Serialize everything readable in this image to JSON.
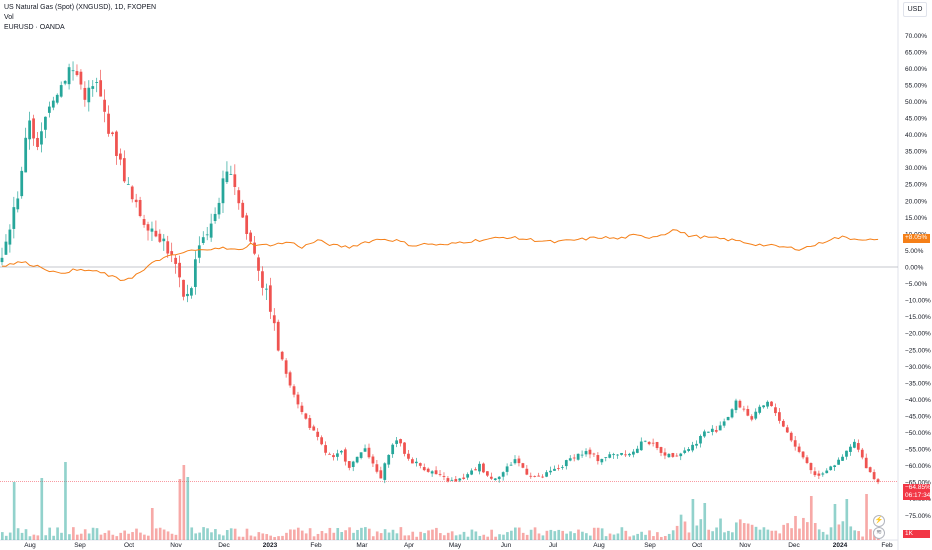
{
  "legend": {
    "series_title": "US Natural Gas (Spot) (XNGUSD), 1D, FXOPEN",
    "volume_label": "Vol",
    "compare_label": "EURUSD · OANDA"
  },
  "currency": "USD",
  "badges": {
    "eurusd_value": "+8.05%",
    "ng_value": "−64.85%",
    "ng_countdown": "06:17:34",
    "vol_value": "1K"
  },
  "icons": {
    "alert": "lightning-icon",
    "layers": "layers-icon"
  },
  "colors": {
    "up": "#26a69a",
    "down": "#ef5350",
    "compare": "#f57f17",
    "zero_line": "#b2b5be",
    "price_line": "#f23645"
  },
  "chart_data": {
    "type": "candlestick",
    "y_scale": "percent",
    "ylim": [
      -80,
      72
    ],
    "y_ticks": [
      "70.00%",
      "65.00%",
      "60.00%",
      "55.00%",
      "50.00%",
      "45.00%",
      "40.00%",
      "35.00%",
      "30.00%",
      "25.00%",
      "20.00%",
      "15.00%",
      "10.00%",
      "5.00%",
      "0.00%",
      "−5.00%",
      "−10.00%",
      "−15.00%",
      "−20.00%",
      "−25.00%",
      "−30.00%",
      "−35.00%",
      "−40.00%",
      "−45.00%",
      "−50.00%",
      "−55.00%",
      "−60.00%",
      "−65.00%",
      "−70.00%",
      "−75.00%"
    ],
    "x_ticks": [
      "Aug",
      "Sep",
      "Oct",
      "Nov",
      "Dec",
      "2023",
      "Feb",
      "Mar",
      "Apr",
      "May",
      "Jun",
      "Jul",
      "Aug",
      "Sep",
      "Oct",
      "Nov",
      "Dec",
      "2024",
      "Feb"
    ],
    "series": [
      {
        "name": "US Natural Gas (Spot) (XNGUSD)",
        "anchors": [
          [
            0,
            2
          ],
          [
            4,
            22
          ],
          [
            7,
            45
          ],
          [
            9,
            35
          ],
          [
            12,
            50
          ],
          [
            15,
            55
          ],
          [
            17,
            60
          ],
          [
            19,
            58
          ],
          [
            21,
            52
          ],
          [
            24,
            55
          ],
          [
            27,
            42
          ],
          [
            29,
            35
          ],
          [
            33,
            20
          ],
          [
            36,
            14
          ],
          [
            38,
            12
          ],
          [
            41,
            8
          ],
          [
            44,
            0
          ],
          [
            46,
            -10
          ],
          [
            48,
            -5
          ],
          [
            50,
            8
          ],
          [
            53,
            12
          ],
          [
            56,
            25
          ],
          [
            58,
            30
          ],
          [
            60,
            20
          ],
          [
            62,
            10
          ],
          [
            64,
            5
          ],
          [
            66,
            -5
          ],
          [
            68,
            -12
          ],
          [
            70,
            -25
          ],
          [
            72,
            -32
          ],
          [
            74,
            -38
          ],
          [
            76,
            -44
          ],
          [
            78,
            -48
          ],
          [
            80,
            -52
          ],
          [
            82,
            -56
          ],
          [
            84,
            -58
          ],
          [
            86,
            -56
          ],
          [
            88,
            -60
          ],
          [
            90,
            -58
          ],
          [
            92,
            -54
          ],
          [
            94,
            -60
          ],
          [
            96,
            -64
          ],
          [
            98,
            -56
          ],
          [
            100,
            -52
          ],
          [
            103,
            -58
          ],
          [
            106,
            -60
          ],
          [
            109,
            -62
          ],
          [
            112,
            -64
          ],
          [
            115,
            -65
          ],
          [
            118,
            -63
          ],
          [
            121,
            -60
          ],
          [
            124,
            -64
          ],
          [
            127,
            -62
          ],
          [
            130,
            -58
          ],
          [
            133,
            -62
          ],
          [
            136,
            -64
          ],
          [
            139,
            -62
          ],
          [
            142,
            -60
          ],
          [
            145,
            -57
          ],
          [
            148,
            -56
          ],
          [
            151,
            -58
          ],
          [
            154,
            -57
          ],
          [
            157,
            -56
          ],
          [
            160,
            -56
          ],
          [
            163,
            -52
          ],
          [
            166,
            -55
          ],
          [
            169,
            -57
          ],
          [
            172,
            -56
          ],
          [
            175,
            -54
          ],
          [
            178,
            -50
          ],
          [
            181,
            -49
          ],
          [
            184,
            -45
          ],
          [
            186,
            -41
          ],
          [
            188,
            -43
          ],
          [
            190,
            -46
          ],
          [
            192,
            -43
          ],
          [
            194,
            -41
          ],
          [
            196,
            -44
          ],
          [
            198,
            -48
          ],
          [
            200,
            -52
          ],
          [
            202,
            -56
          ],
          [
            204,
            -59
          ],
          [
            206,
            -63
          ],
          [
            208,
            -62
          ],
          [
            210,
            -60
          ],
          [
            212,
            -59
          ],
          [
            214,
            -56
          ],
          [
            216,
            -53
          ],
          [
            218,
            -58
          ],
          [
            220,
            -62
          ],
          [
            222,
            -65
          ]
        ],
        "bar_count": 223,
        "last_change_percent": -64.85,
        "bar_dates": {
          "first": "Jul 2022",
          "last": "Jan 2024"
        }
      },
      {
        "name": "EURUSD · OANDA",
        "type": "line",
        "anchors": [
          [
            0,
            0.5
          ],
          [
            5,
            1.5
          ],
          [
            10,
            0
          ],
          [
            14,
            -2
          ],
          [
            18,
            -1
          ],
          [
            22,
            -1
          ],
          [
            26,
            -2
          ],
          [
            30,
            -4
          ],
          [
            33,
            -3
          ],
          [
            36,
            -1
          ],
          [
            39,
            2
          ],
          [
            42,
            3
          ],
          [
            45,
            4
          ],
          [
            48,
            5
          ],
          [
            51,
            5
          ],
          [
            54,
            6
          ],
          [
            57,
            5.5
          ],
          [
            60,
            5
          ],
          [
            63,
            7
          ],
          [
            66,
            6.5
          ],
          [
            70,
            7
          ],
          [
            73,
            7.5
          ],
          [
            76,
            6
          ],
          [
            80,
            8
          ],
          [
            84,
            6.5
          ],
          [
            88,
            6
          ],
          [
            92,
            7.5
          ],
          [
            96,
            8.5
          ],
          [
            100,
            8
          ],
          [
            104,
            6.5
          ],
          [
            108,
            7
          ],
          [
            112,
            6.5
          ],
          [
            116,
            7.5
          ],
          [
            120,
            8
          ],
          [
            124,
            8.5
          ],
          [
            128,
            9
          ],
          [
            132,
            8.5
          ],
          [
            136,
            8
          ],
          [
            140,
            7.5
          ],
          [
            144,
            8
          ],
          [
            148,
            8.5
          ],
          [
            152,
            9
          ],
          [
            156,
            8.5
          ],
          [
            160,
            9.5
          ],
          [
            164,
            9
          ],
          [
            168,
            10
          ],
          [
            170,
            11.5
          ],
          [
            172,
            10.5
          ],
          [
            174,
            9.5
          ],
          [
            178,
            9
          ],
          [
            182,
            8.5
          ],
          [
            186,
            8
          ],
          [
            190,
            7
          ],
          [
            194,
            6.5
          ],
          [
            198,
            6
          ],
          [
            202,
            5.5
          ],
          [
            204,
            6
          ],
          [
            207,
            7
          ],
          [
            210,
            8.5
          ],
          [
            213,
            9
          ],
          [
            216,
            8.5
          ],
          [
            218,
            8.5
          ],
          [
            220,
            8.2
          ],
          [
            222,
            8.05
          ]
        ],
        "last_change_percent": 8.05
      }
    ],
    "volume": {
      "name": "Vol",
      "spikes": [
        [
          3,
          58
        ],
        [
          10,
          62
        ],
        [
          16,
          78
        ],
        [
          38,
          32
        ],
        [
          45,
          61
        ],
        [
          46,
          75
        ],
        [
          47,
          63
        ],
        [
          175,
          41
        ],
        [
          178,
          37
        ],
        [
          205,
          44
        ],
        [
          211,
          36
        ],
        [
          214,
          41
        ],
        [
          219,
          46
        ]
      ]
    }
  }
}
